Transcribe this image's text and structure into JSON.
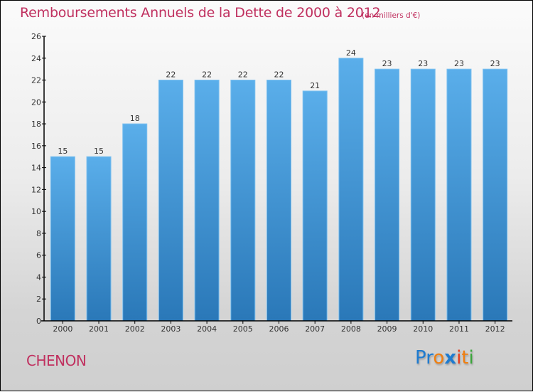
{
  "header": {
    "title": "Remboursements Annuels de la Dette de 2000 à 2012",
    "subtitle": "(en milliers d'€)"
  },
  "footer": {
    "place": "CHENON",
    "logo": {
      "letters": [
        "P",
        "r",
        "o",
        "x",
        "i",
        "t",
        "i"
      ],
      "colors": [
        "#1e7bd0",
        "#1e7bd0",
        "#f07f10",
        "#1e7bd0",
        "#e83a1a",
        "#f07f10",
        "#3aa53a"
      ]
    }
  },
  "colors": {
    "title": "#c0305f",
    "bar_top": "#5aaeea",
    "bar_bottom": "#2a78b8",
    "axis": "#000000"
  },
  "chart_data": {
    "type": "bar",
    "title": "Remboursements Annuels de la Dette de 2000 à 2012",
    "subtitle": "(en milliers d'€)",
    "xlabel": "",
    "ylabel": "",
    "categories": [
      "2000",
      "2001",
      "2002",
      "2003",
      "2004",
      "2005",
      "2006",
      "2007",
      "2008",
      "2009",
      "2010",
      "2011",
      "2012"
    ],
    "values": [
      15,
      15,
      18,
      22,
      22,
      22,
      22,
      21,
      24,
      23,
      23,
      23,
      23
    ],
    "ylim": [
      0,
      26
    ],
    "yticks": [
      0,
      2,
      4,
      6,
      8,
      10,
      12,
      14,
      16,
      18,
      20,
      22,
      24,
      26
    ],
    "grid": false,
    "legend": "none",
    "data_labels": true
  }
}
